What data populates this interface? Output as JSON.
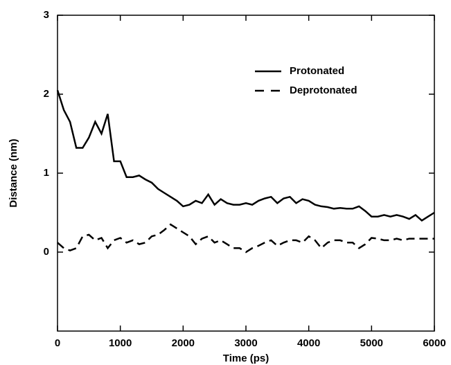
{
  "chart_data": {
    "type": "line",
    "xlabel": "Time (ps)",
    "ylabel": "Distance (nm)",
    "x": [
      0,
      100,
      200,
      300,
      400,
      500,
      600,
      700,
      800,
      900,
      1000,
      1100,
      1200,
      1300,
      1400,
      1500,
      1600,
      1700,
      1800,
      1900,
      2000,
      2100,
      2200,
      2300,
      2400,
      2500,
      2600,
      2700,
      2800,
      2900,
      3000,
      3100,
      3200,
      3300,
      3400,
      3500,
      3600,
      3700,
      3800,
      3900,
      4000,
      4100,
      4200,
      4300,
      4400,
      4500,
      4600,
      4700,
      4800,
      4900,
      5000,
      5100,
      5200,
      5300,
      5400,
      5500,
      5600,
      5700,
      5800,
      5900,
      6000
    ],
    "series": [
      {
        "name": "Protonated",
        "color": "#000000",
        "linestyle": "solid",
        "values": [
          2.05,
          1.8,
          1.65,
          1.32,
          1.32,
          1.45,
          1.65,
          1.5,
          1.75,
          1.15,
          1.15,
          0.95,
          0.95,
          0.97,
          0.92,
          0.88,
          0.8,
          0.75,
          0.7,
          0.65,
          0.58,
          0.6,
          0.65,
          0.62,
          0.73,
          0.6,
          0.67,
          0.62,
          0.6,
          0.6,
          0.62,
          0.6,
          0.65,
          0.68,
          0.7,
          0.62,
          0.68,
          0.7,
          0.62,
          0.67,
          0.65,
          0.6,
          0.58,
          0.57,
          0.55,
          0.56,
          0.55,
          0.55,
          0.58,
          0.52,
          0.45,
          0.45,
          0.47,
          0.45,
          0.47,
          0.45,
          0.42,
          0.47,
          0.4,
          0.45,
          0.5
        ]
      },
      {
        "name": "Deprotonated",
        "color": "#000000",
        "linestyle": "dashed",
        "values": [
          0.12,
          0.05,
          0.02,
          0.05,
          0.2,
          0.22,
          0.15,
          0.18,
          0.05,
          0.15,
          0.18,
          0.12,
          0.15,
          0.1,
          0.12,
          0.2,
          0.22,
          0.28,
          0.35,
          0.3,
          0.25,
          0.2,
          0.1,
          0.17,
          0.2,
          0.12,
          0.15,
          0.1,
          0.05,
          0.05,
          0.0,
          0.05,
          0.08,
          0.12,
          0.15,
          0.08,
          0.12,
          0.15,
          0.15,
          0.12,
          0.2,
          0.15,
          0.05,
          0.12,
          0.15,
          0.15,
          0.12,
          0.12,
          0.05,
          0.1,
          0.18,
          0.17,
          0.15,
          0.15,
          0.17,
          0.15,
          0.17,
          0.17,
          0.17,
          0.17,
          0.17
        ]
      }
    ],
    "xlim": [
      0,
      6000
    ],
    "xticks": [
      0,
      1000,
      2000,
      3000,
      4000,
      5000,
      6000
    ],
    "ylim": [
      -1,
      3
    ],
    "yticks": [
      0,
      1,
      2,
      3
    ],
    "grid": false,
    "legend": "upper right"
  }
}
